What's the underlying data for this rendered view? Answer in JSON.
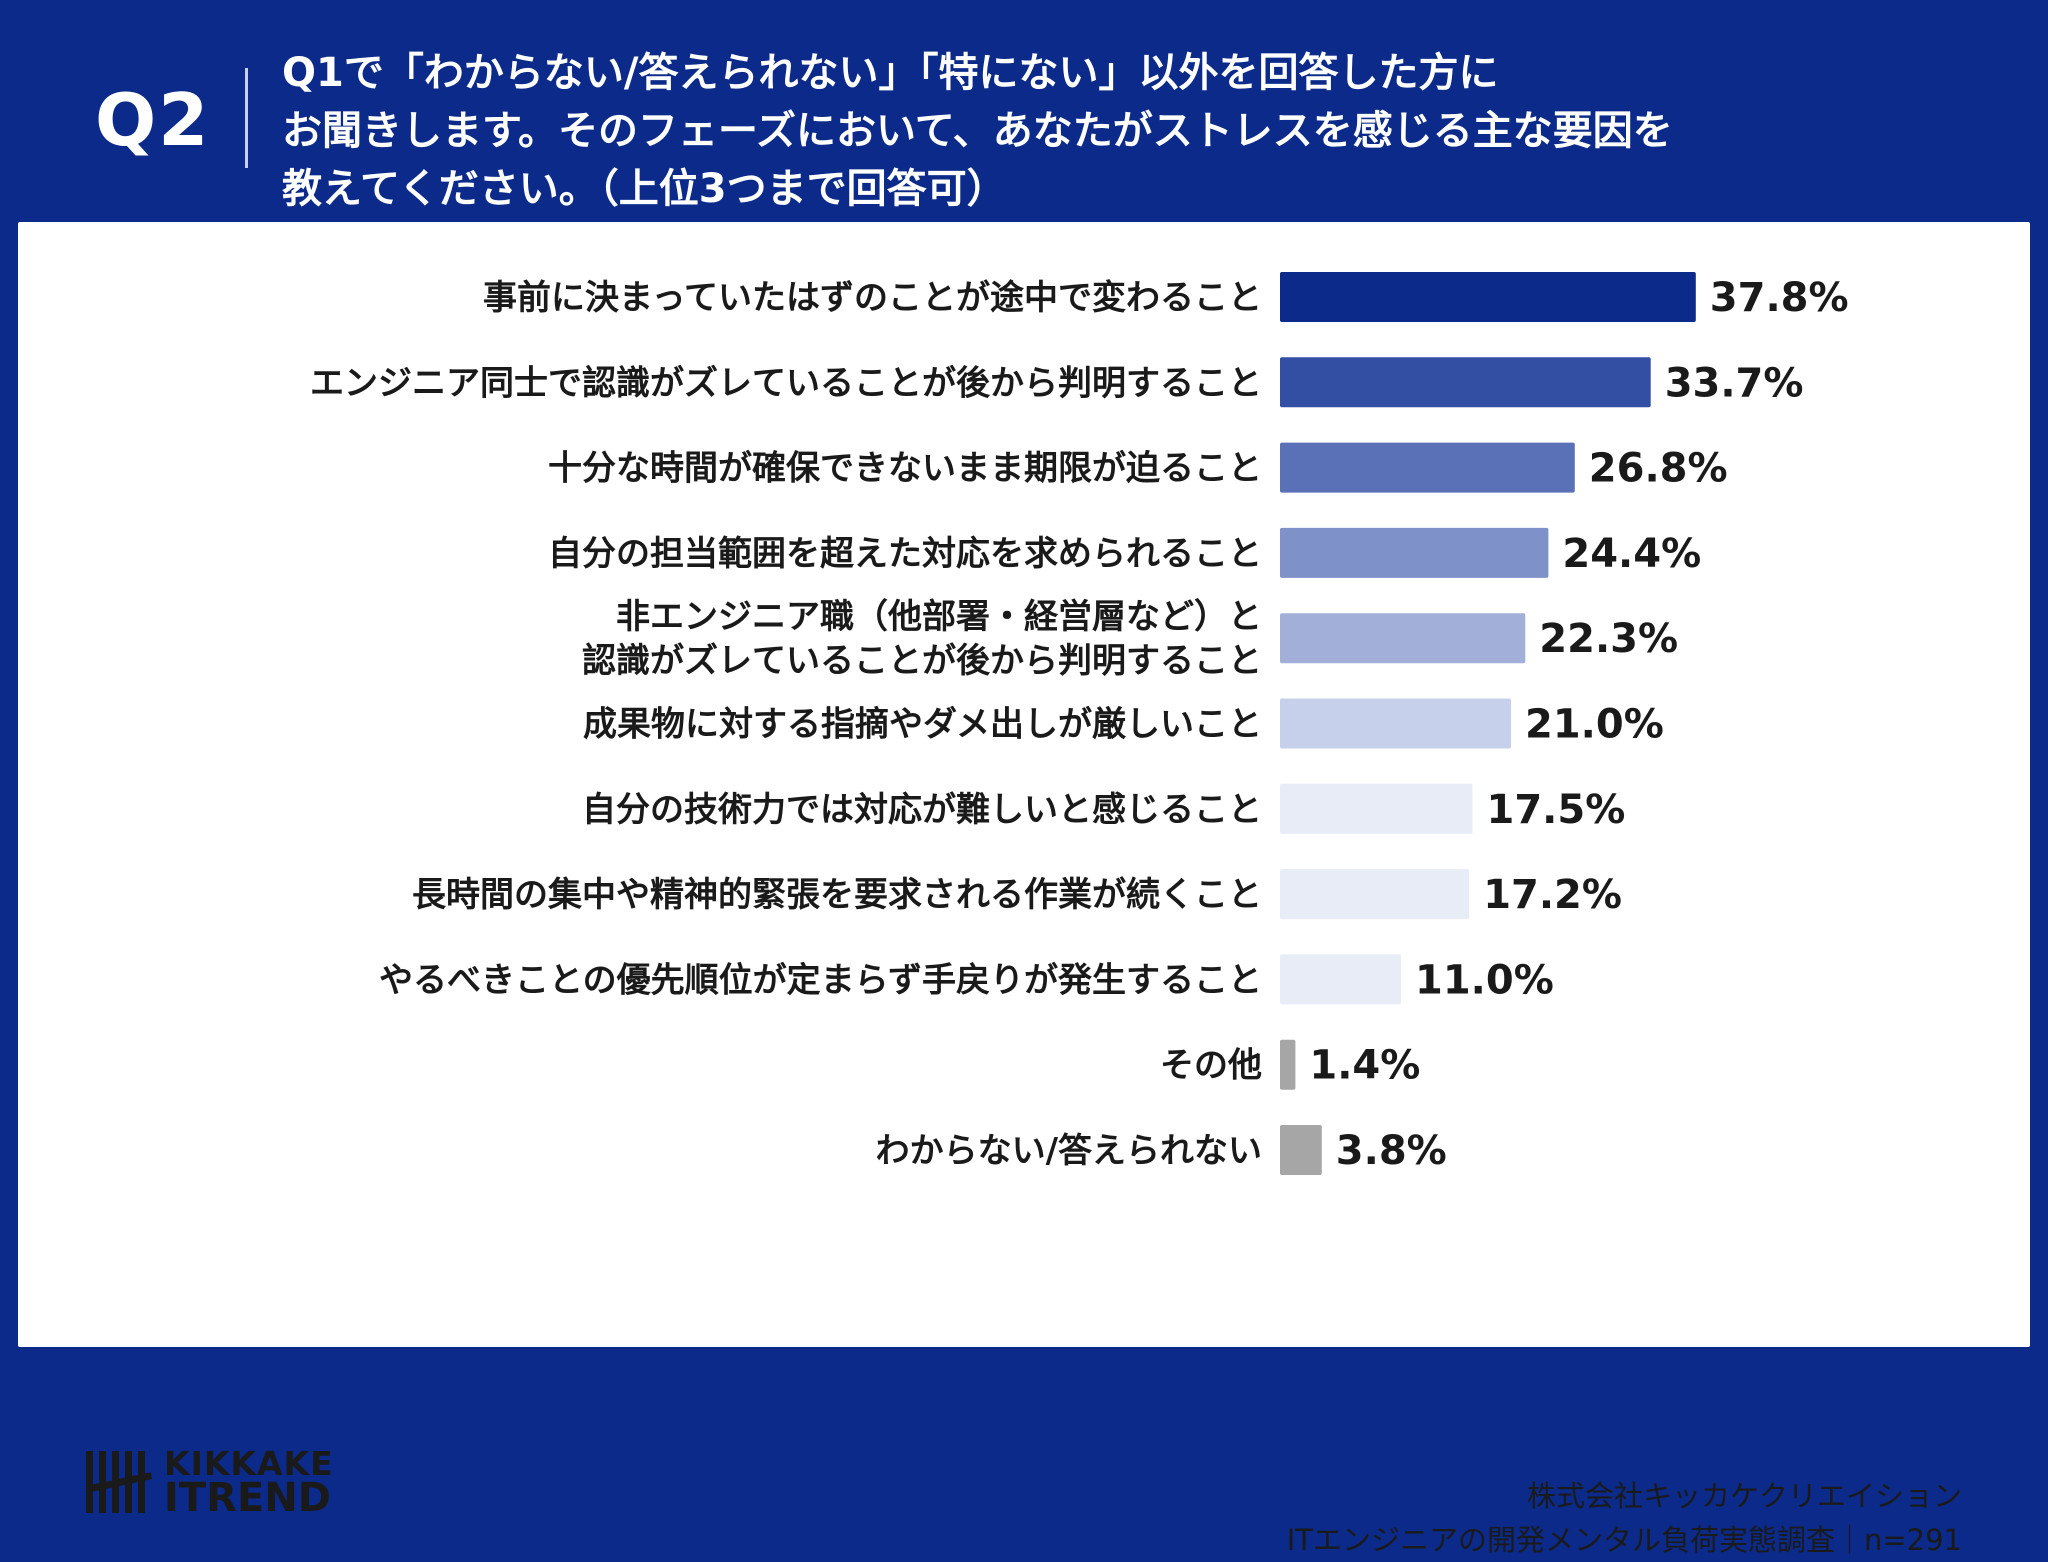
{
  "header": {
    "q_label": "Q2",
    "question_lines": [
      "Q1で「わからない/答えられない」「特にない」以外を回答した方に",
      "お聞きします。そのフェーズにおいて、あなたがストレスを感じる主な要因を",
      "教えてください。（上位3つまで回答可）"
    ]
  },
  "chart_data": {
    "type": "bar",
    "orientation": "horizontal",
    "unit": "%",
    "xlim": [
      0,
      100
    ],
    "categories": [
      [
        "事前に決まっていたはずのことが途中で変わること"
      ],
      [
        "エンジニア同士で認識がズレていることが後から判明すること"
      ],
      [
        "十分な時間が確保できないまま期限が迫ること"
      ],
      [
        "自分の担当範囲を超えた対応を求められること"
      ],
      [
        "非エンジニア職（他部署・経営層など）と",
        "認識がズレていることが後から判明すること"
      ],
      [
        "成果物に対する指摘やダメ出しが厳しいこと"
      ],
      [
        "自分の技術力では対応が難しいと感じること"
      ],
      [
        "長時間の集中や精神的緊張を要求される作業が続くこと"
      ],
      [
        "やるべきことの優先順位が定まらず手戻りが発生すること"
      ],
      [
        "その他"
      ],
      [
        "わからない/答えられない"
      ]
    ],
    "values": [
      37.8,
      33.7,
      26.8,
      24.4,
      22.3,
      21.0,
      17.5,
      17.2,
      11.0,
      1.4,
      3.8
    ],
    "value_labels": [
      "37.8%",
      "33.7%",
      "26.8%",
      "24.4%",
      "22.3%",
      "21.0%",
      "17.5%",
      "17.2%",
      "11.0%",
      "1.4%",
      "3.8%"
    ],
    "bar_colors": [
      "#0b2a8a",
      "#324fa3",
      "#5a71b8",
      "#7f91c9",
      "#a2b0d9",
      "#c6d0ea",
      "#e7ecf7",
      "#e7ecf7",
      "#e7ecf7",
      "#a6a6a6",
      "#a6a6a6"
    ]
  },
  "brand": {
    "line1": "KIKKAKE",
    "line2": "ITREND"
  },
  "footer": {
    "company": "株式会社キッカケクリエイション",
    "survey": "ITエンジニアの開発メンタル負荷実態調査｜n=291"
  }
}
